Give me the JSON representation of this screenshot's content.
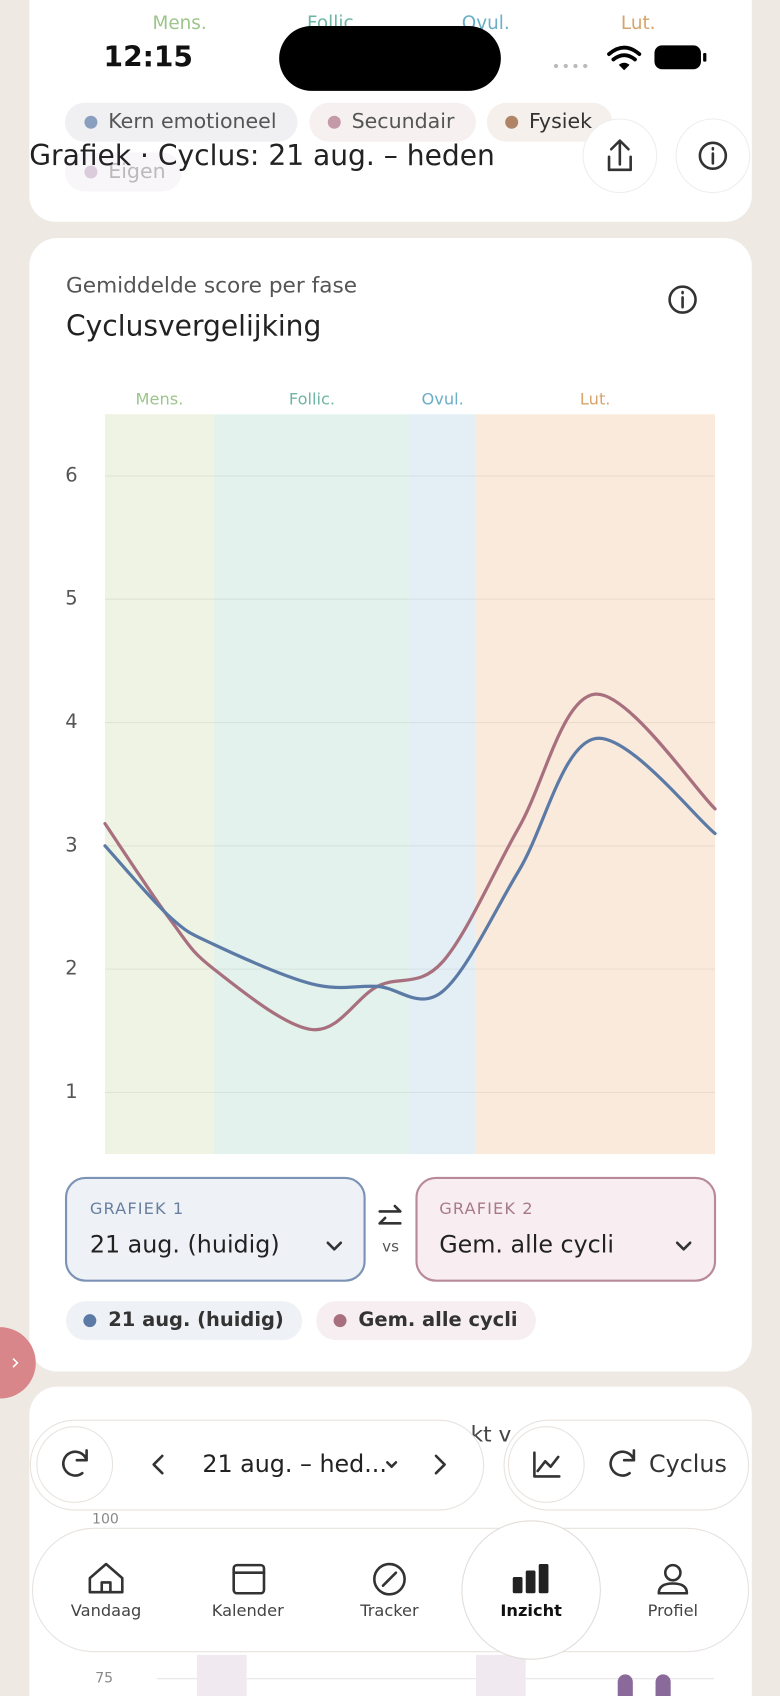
{
  "status_bar": {
    "time": "12:15"
  },
  "top_card": {
    "phases": [
      "Mens.",
      "Follic.",
      "Ovul.",
      "Lut."
    ],
    "header_title": "Grafiek · Cyclus: 21 aug. – heden",
    "chips": [
      "Kern emotioneel",
      "Secundair",
      "Fysiek",
      "Eigen"
    ]
  },
  "card": {
    "subtitle": "Gemiddelde score per fase",
    "title": "Cyclusvergelijking"
  },
  "chart": {
    "type": "line",
    "x": [
      0,
      3,
      5,
      9.5,
      12.5,
      15.5,
      19,
      22.5,
      28
    ],
    "xlim": [
      0,
      28
    ],
    "ylim": [
      0.5,
      6.5
    ],
    "yticks": [
      1,
      2,
      3,
      4,
      5,
      6
    ],
    "grid": true,
    "phases": [
      {
        "label": "Mens.",
        "start": 0,
        "end": 5,
        "color": "#eef3e3",
        "label_color": "#9cc58a"
      },
      {
        "label": "Follic.",
        "start": 5,
        "end": 14,
        "color": "#e3f2ec",
        "label_color": "#6fb5a3"
      },
      {
        "label": "Ovul.",
        "start": 14,
        "end": 17,
        "color": "#e3eff5",
        "label_color": "#6aaec8"
      },
      {
        "label": "Lut.",
        "start": 17,
        "end": 28,
        "color": "#faeadb",
        "label_color": "#d6a46b"
      }
    ],
    "series": [
      {
        "name": "21 aug. (huidig)",
        "color": "#5b7aa6",
        "values": [
          3.0,
          2.42,
          2.2,
          1.88,
          1.86,
          1.82,
          2.8,
          3.87,
          3.1
        ]
      },
      {
        "name": "Gem. alle cycli",
        "color": "#a8707f",
        "values": [
          3.18,
          2.4,
          2.0,
          1.51,
          1.86,
          2.06,
          3.15,
          4.23,
          3.3
        ]
      }
    ]
  },
  "selectors": {
    "left": {
      "label": "GRAFIEK 1",
      "value": "21 aug. (huidig)"
    },
    "swap": "vs",
    "right": {
      "label": "GRAFIEK 2",
      "value": "Gem. alle cycli"
    }
  },
  "next_card": {
    "partial_title": "kt v",
    "ticks": [
      "100",
      "75"
    ]
  },
  "toolbar": {
    "range": "21 aug. – hed...",
    "cycle": "Cyclus"
  },
  "tabs": [
    "Vandaag",
    "Kalender",
    "Tracker",
    "Inzicht",
    "Profiel"
  ]
}
